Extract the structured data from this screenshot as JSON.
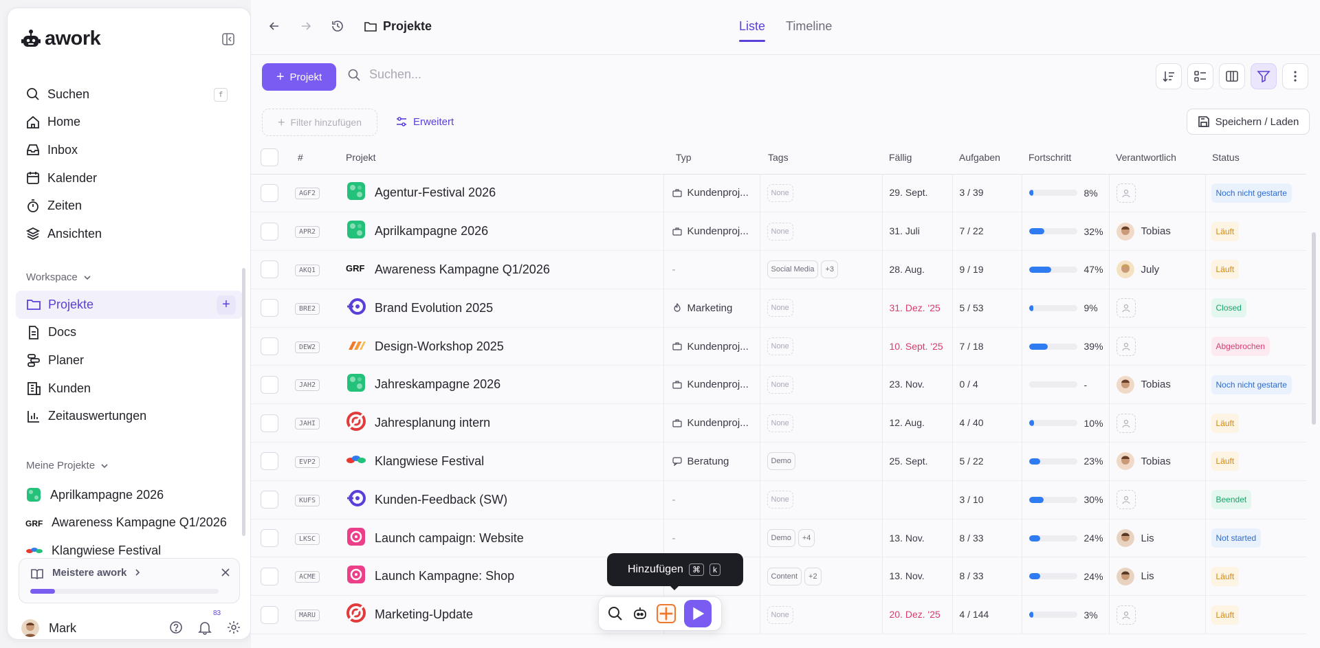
{
  "app": {
    "logo_text": "awork",
    "brand_color": "#7a5cf2"
  },
  "sidebar": {
    "nav": [
      {
        "label": "Suchen",
        "icon": "search-icon",
        "shortcut": "f"
      },
      {
        "label": "Home",
        "icon": "home-icon"
      },
      {
        "label": "Inbox",
        "icon": "inbox-icon"
      },
      {
        "label": "Kalender",
        "icon": "calendar-icon"
      },
      {
        "label": "Zeiten",
        "icon": "timer-icon"
      },
      {
        "label": "Ansichten",
        "icon": "layers-icon"
      }
    ],
    "workspace_heading": "Workspace",
    "workspace_items": [
      {
        "label": "Projekte",
        "icon": "folder-icon",
        "active": true
      },
      {
        "label": "Docs",
        "icon": "doc-icon"
      },
      {
        "label": "Planer",
        "icon": "planner-icon"
      },
      {
        "label": "Kunden",
        "icon": "building-icon"
      },
      {
        "label": "Zeitauswertungen",
        "icon": "bar-chart-icon"
      }
    ],
    "my_projects_heading": "Meine Projekte",
    "my_projects": [
      {
        "label": "Aprilkampagne 2026"
      },
      {
        "label": "Awareness Kampagne Q1/2026"
      },
      {
        "label": "Klangwiese Festival"
      }
    ],
    "onboarding": {
      "label": "Meistere awork",
      "progress": 0.13
    },
    "user": {
      "name": "Mark",
      "notification_count": "83"
    }
  },
  "topbar": {
    "breadcrumb": "Projekte",
    "tabs": [
      {
        "label": "Liste",
        "active": true
      },
      {
        "label": "Timeline",
        "active": false
      }
    ]
  },
  "toolbar": {
    "new_project_label": "Projekt",
    "search_placeholder": "Suchen...",
    "filter_label": "Filter hinzufügen",
    "advanced_label": "Erweitert",
    "save_label": "Speichern / Laden"
  },
  "table": {
    "columns": [
      "#",
      "Projekt",
      "Typ",
      "Tags",
      "Fällig",
      "Aufgaben",
      "Fortschritt",
      "Verantwortlich",
      "Status"
    ],
    "rows": [
      {
        "key": "AGF2",
        "name": "Agentur-Festival 2026",
        "icon": "green",
        "type": "Kundenproj...",
        "tags": [
          "None"
        ],
        "due": "29. Sept.",
        "due_red": false,
        "tasks": "3 / 39",
        "progress": 8,
        "progress_label": "8%",
        "owner": "",
        "status": "Noch nicht gestarte",
        "status_color": "blue"
      },
      {
        "key": "APR2",
        "name": "Aprilkampagne 2026",
        "icon": "green",
        "type": "Kundenproj...",
        "tags": [
          "None"
        ],
        "due": "31. Juli",
        "due_red": false,
        "tasks": "7 / 22",
        "progress": 32,
        "progress_label": "32%",
        "owner": "Tobias",
        "status": "Läuft",
        "status_color": "orange"
      },
      {
        "key": "AKQ1",
        "name": "Awareness Kampagne Q1/2026",
        "icon": "black",
        "type": "-",
        "tags": [
          "Social Media",
          "+3"
        ],
        "due": "28. Aug.",
        "due_red": false,
        "tasks": "9 / 19",
        "progress": 47,
        "progress_label": "47%",
        "owner": "July",
        "status": "Läuft",
        "status_color": "orange"
      },
      {
        "key": "BRE2",
        "name": "Brand Evolution 2025",
        "icon": "violet",
        "type": "Marketing",
        "tags": [
          "None"
        ],
        "due": "31. Dez. '25",
        "due_red": true,
        "tasks": "5 / 53",
        "progress": 9,
        "progress_label": "9%",
        "owner": "",
        "status": "Closed",
        "status_color": "green"
      },
      {
        "key": "DEW2",
        "name": "Design-Workshop 2025",
        "icon": "orange",
        "type": "Kundenproj...",
        "tags": [
          "None"
        ],
        "due": "10. Sept. '25",
        "due_red": true,
        "tasks": "7 / 18",
        "progress": 39,
        "progress_label": "39%",
        "owner": "",
        "status": "Abgebrochen",
        "status_color": "pink"
      },
      {
        "key": "JAH2",
        "name": "Jahreskampagne 2026",
        "icon": "green",
        "type": "Kundenproj...",
        "tags": [
          "None"
        ],
        "due": "23. Nov.",
        "due_red": false,
        "tasks": "0 / 4",
        "progress": 0,
        "progress_label": "-",
        "owner": "Tobias",
        "status": "Noch nicht gestarte",
        "status_color": "blue"
      },
      {
        "key": "JAHI",
        "name": "Jahresplanung intern",
        "icon": "red",
        "type": "Kundenproj...",
        "tags": [
          "None"
        ],
        "due": "12. Aug.",
        "due_red": false,
        "tasks": "4 / 40",
        "progress": 10,
        "progress_label": "10%",
        "owner": "",
        "status": "Läuft",
        "status_color": "orange"
      },
      {
        "key": "EVP2",
        "name": "Klangwiese Festival",
        "icon": "rainbow",
        "type": "Beratung",
        "tags": [
          "Demo"
        ],
        "due": "25. Sept.",
        "due_red": false,
        "tasks": "5 / 22",
        "progress": 23,
        "progress_label": "23%",
        "owner": "Tobias",
        "status": "Läuft",
        "status_color": "orange"
      },
      {
        "key": "KUFS",
        "name": "Kunden-Feedback (SW)",
        "icon": "violet",
        "type": "-",
        "tags": [
          "None"
        ],
        "due": "",
        "due_red": false,
        "tasks": "3 / 10",
        "progress": 30,
        "progress_label": "30%",
        "owner": "",
        "status": "Beendet",
        "status_color": "green"
      },
      {
        "key": "LKSC",
        "name": "Launch campaign: Website",
        "icon": "pink",
        "type": "-",
        "tags": [
          "Demo",
          "+4"
        ],
        "due": "13. Nov.",
        "due_red": false,
        "tasks": "8 / 33",
        "progress": 24,
        "progress_label": "24%",
        "owner": "Lis",
        "status": "Not started",
        "status_color": "blue"
      },
      {
        "key": "ACME",
        "name": "Launch Kampagne: Shop",
        "icon": "pink",
        "type": "",
        "tags": [
          "Content",
          "+2"
        ],
        "due": "13. Nov.",
        "due_red": false,
        "tasks": "8 / 33",
        "progress": 24,
        "progress_label": "24%",
        "owner": "Lis",
        "status": "Läuft",
        "status_color": "orange"
      },
      {
        "key": "MARU",
        "name": "Marketing-Update",
        "icon": "red",
        "type": "eting",
        "tags": [
          "None"
        ],
        "due": "20. Dez. '25",
        "due_red": true,
        "tasks": "4 / 144",
        "progress": 3,
        "progress_label": "3%",
        "owner": "",
        "status": "Läuft",
        "status_color": "orange"
      }
    ]
  },
  "floating": {
    "tooltip_label": "Hinzufügen",
    "tooltip_key1": "⌘",
    "tooltip_key2": "k"
  }
}
